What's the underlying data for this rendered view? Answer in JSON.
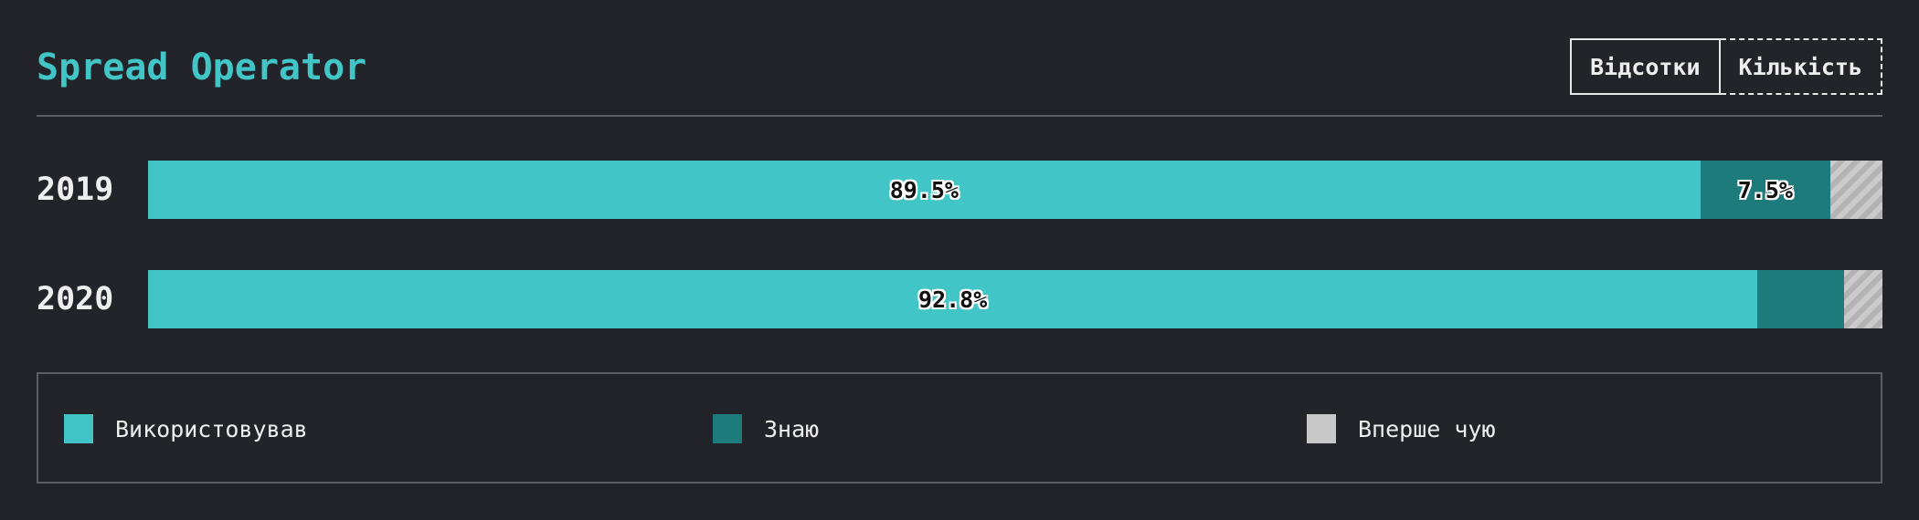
{
  "header": {
    "title": "Spread Operator",
    "toggle": {
      "percent_label": "Відсотки",
      "count_label": "Кількість"
    }
  },
  "colors": {
    "used": "#42c5c6",
    "know": "#1d7b7c",
    "never": "#c8c8c8"
  },
  "legend": {
    "items": [
      {
        "label": "Використовував",
        "key": "used"
      },
      {
        "label": "Знаю",
        "key": "know"
      },
      {
        "label": "Вперше чую",
        "key": "never"
      }
    ]
  },
  "chart_data": {
    "type": "bar",
    "orientation": "horizontal",
    "stacked": true,
    "categories": [
      "2019",
      "2020"
    ],
    "series": [
      {
        "name": "Використовував",
        "values": [
          89.5,
          92.8
        ],
        "labels": [
          "89.5%",
          "92.8%"
        ]
      },
      {
        "name": "Знаю",
        "values": [
          7.5,
          5.0
        ],
        "labels": [
          "7.5%",
          ""
        ]
      },
      {
        "name": "Вперше чую",
        "values": [
          3.0,
          2.2
        ],
        "labels": [
          "",
          ""
        ]
      }
    ],
    "xlim": [
      0,
      100
    ]
  }
}
